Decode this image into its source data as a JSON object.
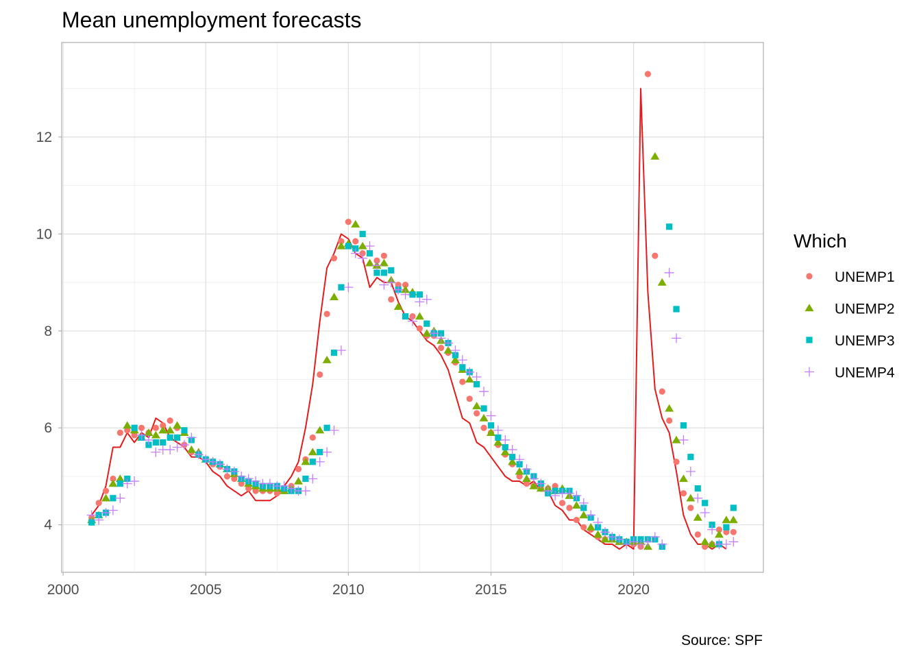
{
  "chart_data": {
    "type": "scatter",
    "title": "Mean unemployment forecasts",
    "caption": "Source: SPF",
    "xlim": [
      1999.95,
      2024.55
    ],
    "ylim": [
      3.02,
      13.95
    ],
    "x_ticks": [
      2000,
      2005,
      2010,
      2015,
      2020
    ],
    "y_ticks": [
      4,
      6,
      8,
      10,
      12
    ],
    "grid": "on",
    "legend": {
      "title": "Which",
      "position": "right",
      "entries": [
        "UNEMP1",
        "UNEMP2",
        "UNEMP3",
        "UNEMP4"
      ]
    },
    "colors": {
      "UNEMP1": "#F8766D",
      "UNEMP2": "#7CAE00",
      "UNEMP3": "#00BFC4",
      "UNEMP4": "#C77CFF",
      "actual": "#E41A1C"
    },
    "actual_line": {
      "x": [
        2001.0,
        2001.25,
        2001.5,
        2001.75,
        2002.0,
        2002.25,
        2002.5,
        2002.75,
        2003.0,
        2003.25,
        2003.5,
        2003.75,
        2004.0,
        2004.25,
        2004.5,
        2004.75,
        2005.0,
        2005.25,
        2005.5,
        2005.75,
        2006.0,
        2006.25,
        2006.5,
        2006.75,
        2007.0,
        2007.25,
        2007.5,
        2007.75,
        2008.0,
        2008.25,
        2008.5,
        2008.75,
        2009.0,
        2009.25,
        2009.5,
        2009.75,
        2010.0,
        2010.25,
        2010.5,
        2010.75,
        2011.0,
        2011.25,
        2011.5,
        2011.75,
        2012.0,
        2012.25,
        2012.5,
        2012.75,
        2013.0,
        2013.25,
        2013.5,
        2013.75,
        2014.0,
        2014.25,
        2014.5,
        2014.75,
        2015.0,
        2015.25,
        2015.5,
        2015.75,
        2016.0,
        2016.25,
        2016.5,
        2016.75,
        2017.0,
        2017.25,
        2017.5,
        2017.75,
        2018.0,
        2018.25,
        2018.5,
        2018.75,
        2019.0,
        2019.25,
        2019.5,
        2019.75,
        2020.0,
        2020.25,
        2020.5,
        2020.75,
        2021.0,
        2021.25,
        2021.5,
        2021.75,
        2022.0,
        2022.25,
        2022.5,
        2022.75,
        2023.0,
        2023.25
      ],
      "y": [
        4.2,
        4.4,
        4.8,
        5.6,
        5.6,
        5.9,
        5.7,
        5.9,
        5.8,
        6.2,
        6.1,
        5.8,
        5.7,
        5.6,
        5.4,
        5.4,
        5.3,
        5.1,
        5.0,
        4.8,
        4.7,
        4.6,
        4.7,
        4.5,
        4.5,
        4.5,
        4.6,
        4.8,
        5.0,
        5.3,
        6.0,
        6.9,
        8.2,
        9.3,
        9.6,
        10.0,
        9.9,
        9.6,
        9.5,
        8.9,
        9.1,
        9.0,
        9.0,
        8.6,
        8.3,
        8.2,
        8.0,
        7.8,
        7.7,
        7.5,
        7.2,
        6.7,
        6.2,
        6.1,
        5.7,
        5.6,
        5.4,
        5.2,
        5.0,
        4.9,
        4.9,
        4.8,
        4.9,
        4.7,
        4.7,
        4.4,
        4.3,
        4.1,
        4.1,
        3.9,
        3.8,
        3.7,
        3.6,
        3.6,
        3.5,
        3.6,
        3.5,
        13.0,
        8.8,
        6.8,
        6.2,
        5.9,
        5.1,
        4.2,
        3.8,
        3.6,
        3.6,
        3.5,
        3.6,
        3.5
      ]
    },
    "series": [
      {
        "name": "UNEMP1",
        "x": [
          2001.0,
          2001.25,
          2001.5,
          2001.75,
          2002.0,
          2002.25,
          2002.5,
          2002.75,
          2003.0,
          2003.25,
          2003.5,
          2003.75,
          2004.0,
          2004.25,
          2004.5,
          2004.75,
          2005.0,
          2005.25,
          2005.5,
          2005.75,
          2006.0,
          2006.25,
          2006.5,
          2006.75,
          2007.0,
          2007.25,
          2007.5,
          2007.75,
          2008.0,
          2008.25,
          2008.5,
          2008.75,
          2009.0,
          2009.25,
          2009.5,
          2009.75,
          2010.0,
          2010.25,
          2010.5,
          2010.75,
          2011.0,
          2011.25,
          2011.5,
          2011.75,
          2012.0,
          2012.25,
          2012.5,
          2012.75,
          2013.0,
          2013.25,
          2013.5,
          2013.75,
          2014.0,
          2014.25,
          2014.5,
          2014.75,
          2015.0,
          2015.25,
          2015.5,
          2015.75,
          2016.0,
          2016.25,
          2016.5,
          2016.75,
          2017.0,
          2017.25,
          2017.5,
          2017.75,
          2018.0,
          2018.25,
          2018.5,
          2018.75,
          2019.0,
          2019.25,
          2019.5,
          2019.75,
          2020.0,
          2020.25,
          2020.5,
          2020.75,
          2021.0,
          2021.25,
          2021.5,
          2021.75,
          2022.0,
          2022.25,
          2022.5,
          2022.75,
          2023.0,
          2023.25,
          2023.5
        ],
        "y": [
          4.15,
          4.45,
          4.7,
          4.95,
          5.9,
          5.95,
          5.85,
          6.0,
          5.9,
          6.0,
          6.05,
          6.15,
          6.0,
          5.65,
          5.5,
          5.45,
          5.35,
          5.25,
          5.2,
          5.0,
          4.95,
          4.85,
          4.75,
          4.7,
          4.7,
          4.7,
          4.65,
          4.7,
          4.8,
          5.15,
          5.35,
          5.8,
          7.1,
          8.35,
          9.5,
          9.85,
          10.25,
          9.85,
          9.6,
          9.6,
          9.45,
          9.55,
          8.65,
          8.95,
          8.95,
          8.3,
          8.05,
          7.9,
          7.9,
          7.65,
          7.55,
          7.35,
          6.95,
          6.6,
          6.3,
          6.0,
          5.9,
          5.65,
          5.45,
          5.25,
          5.0,
          4.85,
          4.8,
          4.75,
          4.75,
          4.8,
          4.45,
          4.35,
          4.1,
          3.95,
          3.9,
          3.75,
          3.7,
          3.7,
          3.65,
          3.65,
          3.6,
          3.55,
          13.3,
          9.55,
          6.75,
          6.15,
          5.3,
          4.65,
          4.35,
          3.8,
          3.55,
          3.6,
          3.9,
          3.85,
          3.85
        ]
      },
      {
        "name": "UNEMP2",
        "x": [
          2001.0,
          2001.25,
          2001.5,
          2001.75,
          2002.0,
          2002.25,
          2002.5,
          2002.75,
          2003.0,
          2003.25,
          2003.5,
          2003.75,
          2004.0,
          2004.25,
          2004.5,
          2004.75,
          2005.0,
          2005.25,
          2005.5,
          2005.75,
          2006.0,
          2006.25,
          2006.5,
          2006.75,
          2007.0,
          2007.25,
          2007.5,
          2007.75,
          2008.0,
          2008.25,
          2008.5,
          2008.75,
          2009.0,
          2009.25,
          2009.5,
          2009.75,
          2010.0,
          2010.25,
          2010.5,
          2010.75,
          2011.0,
          2011.25,
          2011.5,
          2011.75,
          2012.0,
          2012.25,
          2012.5,
          2012.75,
          2013.0,
          2013.25,
          2013.5,
          2013.75,
          2014.0,
          2014.25,
          2014.5,
          2014.75,
          2015.0,
          2015.25,
          2015.5,
          2015.75,
          2016.0,
          2016.25,
          2016.5,
          2016.75,
          2017.0,
          2017.25,
          2017.5,
          2017.75,
          2018.0,
          2018.25,
          2018.5,
          2018.75,
          2019.0,
          2019.25,
          2019.5,
          2019.75,
          2020.0,
          2020.25,
          2020.5,
          2020.75,
          2021.0,
          2021.25,
          2021.5,
          2021.75,
          2022.0,
          2022.25,
          2022.5,
          2022.75,
          2023.0,
          2023.25,
          2023.5
        ],
        "y": [
          4.1,
          4.2,
          4.55,
          4.85,
          4.95,
          6.05,
          5.95,
          5.8,
          5.9,
          5.85,
          5.95,
          5.95,
          6.05,
          5.9,
          5.55,
          5.5,
          5.35,
          5.3,
          5.25,
          5.15,
          5.05,
          4.95,
          4.85,
          4.8,
          4.75,
          4.75,
          4.75,
          4.7,
          4.75,
          4.9,
          5.3,
          5.5,
          5.95,
          7.4,
          8.7,
          9.75,
          9.8,
          10.2,
          9.75,
          9.4,
          9.35,
          9.4,
          9.05,
          8.5,
          8.85,
          8.8,
          8.3,
          7.95,
          8.0,
          7.8,
          7.6,
          7.4,
          7.2,
          7.0,
          6.45,
          6.2,
          5.9,
          5.7,
          5.5,
          5.3,
          5.1,
          4.95,
          4.8,
          4.75,
          4.75,
          4.7,
          4.75,
          4.6,
          4.4,
          4.2,
          3.95,
          3.8,
          3.7,
          3.7,
          3.65,
          3.65,
          3.65,
          3.65,
          3.55,
          11.6,
          9.0,
          6.4,
          5.75,
          4.95,
          4.55,
          4.15,
          3.65,
          3.6,
          3.8,
          4.1,
          4.1
        ]
      },
      {
        "name": "UNEMP3",
        "x": [
          2001.0,
          2001.25,
          2001.5,
          2001.75,
          2002.0,
          2002.25,
          2002.5,
          2002.75,
          2003.0,
          2003.25,
          2003.5,
          2003.75,
          2004.0,
          2004.25,
          2004.5,
          2004.75,
          2005.0,
          2005.25,
          2005.5,
          2005.75,
          2006.0,
          2006.25,
          2006.5,
          2006.75,
          2007.0,
          2007.25,
          2007.5,
          2007.75,
          2008.0,
          2008.25,
          2008.5,
          2008.75,
          2009.0,
          2009.25,
          2009.5,
          2009.75,
          2010.0,
          2010.25,
          2010.5,
          2010.75,
          2011.0,
          2011.25,
          2011.5,
          2011.75,
          2012.0,
          2012.25,
          2012.5,
          2012.75,
          2013.0,
          2013.25,
          2013.5,
          2013.75,
          2014.0,
          2014.25,
          2014.5,
          2014.75,
          2015.0,
          2015.25,
          2015.5,
          2015.75,
          2016.0,
          2016.25,
          2016.5,
          2016.75,
          2017.0,
          2017.25,
          2017.5,
          2017.75,
          2018.0,
          2018.25,
          2018.5,
          2018.75,
          2019.0,
          2019.25,
          2019.5,
          2019.75,
          2020.0,
          2020.25,
          2020.5,
          2020.75,
          2021.0,
          2021.25,
          2021.5,
          2021.75,
          2022.0,
          2022.25,
          2022.5,
          2022.75,
          2023.0,
          2023.25,
          2023.5
        ],
        "y": [
          4.05,
          4.2,
          4.25,
          4.55,
          4.85,
          4.95,
          6.0,
          5.8,
          5.65,
          5.7,
          5.7,
          5.8,
          5.8,
          5.95,
          5.75,
          5.45,
          5.35,
          5.3,
          5.25,
          5.15,
          5.1,
          4.95,
          4.9,
          4.85,
          4.8,
          4.8,
          4.8,
          4.75,
          4.7,
          4.7,
          4.95,
          5.3,
          5.5,
          6.0,
          7.55,
          8.9,
          9.75,
          9.7,
          10.0,
          9.6,
          9.2,
          9.2,
          9.25,
          8.85,
          8.3,
          8.75,
          8.75,
          8.15,
          7.95,
          7.95,
          7.75,
          7.5,
          7.25,
          7.15,
          6.9,
          6.4,
          6.05,
          5.8,
          5.6,
          5.4,
          5.25,
          5.1,
          5.0,
          4.85,
          4.65,
          4.7,
          4.7,
          4.7,
          4.55,
          4.35,
          4.15,
          3.95,
          3.85,
          3.75,
          3.7,
          3.65,
          3.7,
          3.7,
          3.7,
          3.7,
          3.55,
          10.15,
          8.45,
          6.05,
          5.4,
          4.75,
          4.45,
          4.0,
          3.6,
          3.95,
          4.35
        ]
      },
      {
        "name": "UNEMP4",
        "x": [
          2001.0,
          2001.25,
          2001.5,
          2001.75,
          2002.0,
          2002.25,
          2002.5,
          2002.75,
          2003.0,
          2003.25,
          2003.5,
          2003.75,
          2004.0,
          2004.25,
          2004.5,
          2004.75,
          2005.0,
          2005.25,
          2005.5,
          2005.75,
          2006.0,
          2006.25,
          2006.5,
          2006.75,
          2007.0,
          2007.25,
          2007.5,
          2007.75,
          2008.0,
          2008.25,
          2008.5,
          2008.75,
          2009.0,
          2009.25,
          2009.5,
          2009.75,
          2010.0,
          2010.25,
          2010.5,
          2010.75,
          2011.0,
          2011.25,
          2011.5,
          2011.75,
          2012.0,
          2012.25,
          2012.5,
          2012.75,
          2013.0,
          2013.25,
          2013.5,
          2013.75,
          2014.0,
          2014.25,
          2014.5,
          2014.75,
          2015.0,
          2015.25,
          2015.5,
          2015.75,
          2016.0,
          2016.25,
          2016.5,
          2016.75,
          2017.0,
          2017.25,
          2017.5,
          2017.75,
          2018.0,
          2018.25,
          2018.5,
          2018.75,
          2019.0,
          2019.25,
          2019.5,
          2019.75,
          2020.0,
          2020.25,
          2020.5,
          2020.75,
          2021.0,
          2021.25,
          2021.5,
          2021.75,
          2022.0,
          2022.25,
          2022.5,
          2022.75,
          2023.0,
          2023.25,
          2023.5
        ],
        "y": [
          4.2,
          4.1,
          4.25,
          4.3,
          4.55,
          4.85,
          4.9,
          5.85,
          5.75,
          5.5,
          5.55,
          5.55,
          5.6,
          5.65,
          5.8,
          5.45,
          5.35,
          5.3,
          5.25,
          5.15,
          5.1,
          5.0,
          4.95,
          4.9,
          4.85,
          4.85,
          4.8,
          4.8,
          4.75,
          4.7,
          4.7,
          4.95,
          5.3,
          5.5,
          5.95,
          7.6,
          8.9,
          9.6,
          9.5,
          9.75,
          9.35,
          8.95,
          9.0,
          8.85,
          8.75,
          8.2,
          8.6,
          8.65,
          7.95,
          7.85,
          7.75,
          7.6,
          7.4,
          7.15,
          7.05,
          6.75,
          6.25,
          5.95,
          5.75,
          5.55,
          5.35,
          5.15,
          4.95,
          4.85,
          4.7,
          4.6,
          4.65,
          4.65,
          4.6,
          4.45,
          4.2,
          4.05,
          3.85,
          3.75,
          3.7,
          3.6,
          3.65,
          3.6,
          3.65,
          3.75,
          3.6,
          9.2,
          7.85,
          5.75,
          5.1,
          4.55,
          4.25,
          3.9,
          3.6,
          3.6,
          3.65
        ]
      }
    ]
  }
}
